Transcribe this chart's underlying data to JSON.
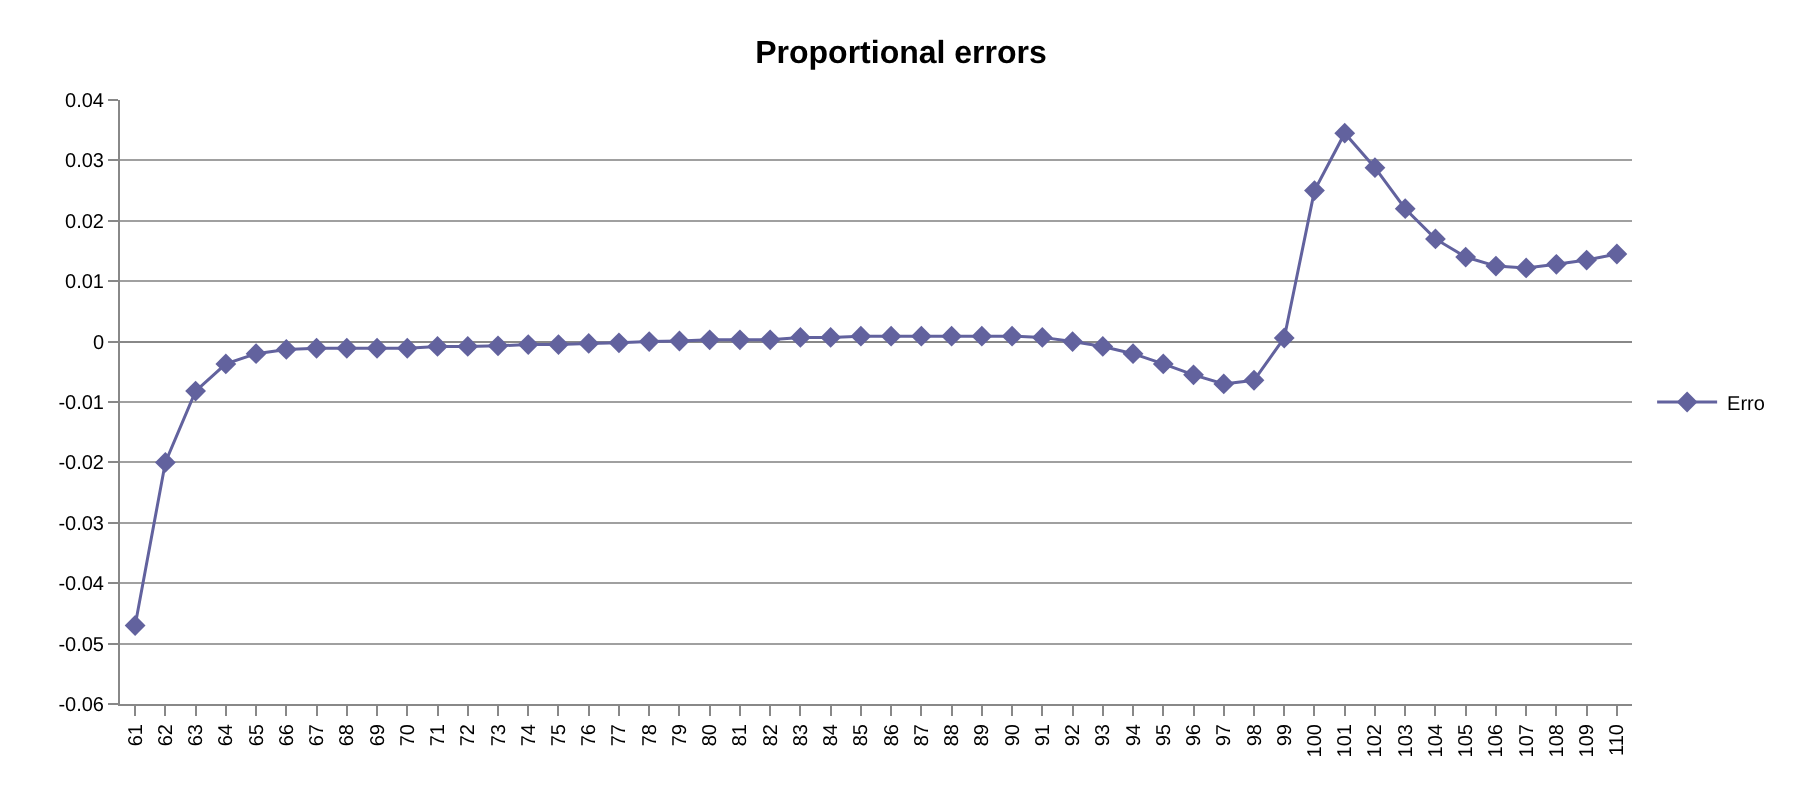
{
  "chart_data": {
    "type": "line",
    "title": "Proportional errors",
    "categories": [
      "61",
      "62",
      "63",
      "64",
      "65",
      "66",
      "67",
      "68",
      "69",
      "70",
      "71",
      "72",
      "73",
      "74",
      "75",
      "76",
      "77",
      "78",
      "79",
      "80",
      "81",
      "82",
      "83",
      "84",
      "85",
      "86",
      "87",
      "88",
      "89",
      "90",
      "91",
      "92",
      "93",
      "94",
      "95",
      "96",
      "97",
      "98",
      "99",
      "100",
      "101",
      "102",
      "103",
      "104",
      "105",
      "106",
      "107",
      "108",
      "109",
      "110"
    ],
    "series": [
      {
        "name": "Erro",
        "color": "#62629e",
        "values": [
          -0.047,
          -0.02,
          -0.0082,
          -0.0037,
          -0.002,
          -0.0013,
          -0.0011,
          -0.0011,
          -0.0011,
          -0.0011,
          -0.0008,
          -0.0008,
          -0.0007,
          -0.0005,
          -0.0005,
          -0.0003,
          -0.0002,
          0,
          0.0001,
          0.0003,
          0.0003,
          0.0003,
          0.0007,
          0.0007,
          0.0009,
          0.0009,
          0.0009,
          0.0009,
          0.0009,
          0.0009,
          0.0007,
          0,
          -0.0008,
          -0.002,
          -0.0037,
          -0.0055,
          -0.007,
          -0.0064,
          0.0006,
          0.025,
          0.0345,
          0.0288,
          0.022,
          0.017,
          0.014,
          0.0125,
          0.0122,
          0.0128,
          0.0135,
          0.0145
        ]
      }
    ],
    "ylim": [
      -0.06,
      0.04
    ],
    "yticks": [
      {
        "value": -0.06,
        "label": "-0.06"
      },
      {
        "value": -0.05,
        "label": "-0.05"
      },
      {
        "value": -0.04,
        "label": "-0.04"
      },
      {
        "value": -0.03,
        "label": "-0.03"
      },
      {
        "value": -0.02,
        "label": "-0.02"
      },
      {
        "value": -0.01,
        "label": "-0.01"
      },
      0,
      {
        "value": 0.01,
        "label": "0.01"
      },
      {
        "value": 0.02,
        "label": "0.02"
      },
      {
        "value": 0.03,
        "label": "0.03"
      },
      {
        "value": 0.04,
        "label": "0.04"
      }
    ],
    "grid": "y",
    "legend": "right",
    "marker": "diamond",
    "line_style": "solid"
  }
}
